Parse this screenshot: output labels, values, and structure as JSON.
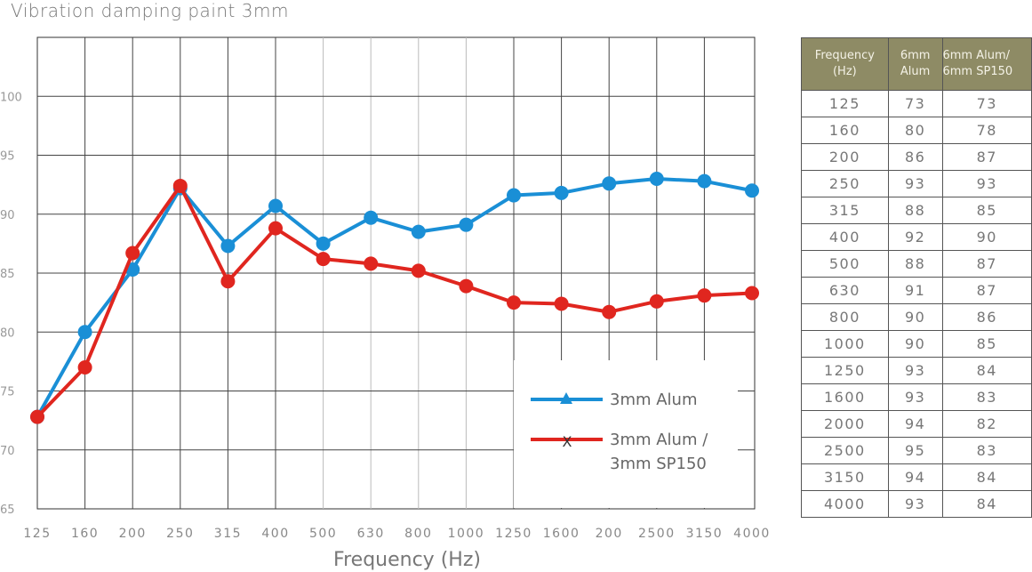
{
  "chart_data": {
    "type": "line",
    "title": "Vibration damping paint 3mm",
    "xlabel": "Frequency (Hz)",
    "ylabel": "",
    "categories": [
      "125",
      "160",
      "200",
      "250",
      "315",
      "400",
      "500",
      "630",
      "800",
      "1000",
      "1250",
      "1600",
      "200",
      "2500",
      "3150",
      "4000"
    ],
    "ylim": [
      65,
      105
    ],
    "yticks": [
      65,
      70,
      75,
      80,
      85,
      90,
      95,
      100
    ],
    "grid": true,
    "legend_position": "bottom-right",
    "series": [
      {
        "name": "3mm Alum",
        "color": "#1a8fd6",
        "marker": "triangle",
        "values": [
          72.8,
          80,
          85.3,
          92.2,
          87.3,
          90.7,
          87.5,
          89.7,
          88.5,
          89.1,
          91.6,
          91.8,
          92.6,
          93,
          92.8,
          92
        ]
      },
      {
        "name": "3mm Alum / 3mm SP150",
        "color": "#e0261f",
        "marker": "x",
        "values": [
          72.8,
          77,
          86.7,
          92.4,
          84.3,
          88.8,
          86.2,
          85.8,
          85.2,
          83.9,
          82.5,
          82.4,
          81.7,
          82.6,
          83.1,
          83.3
        ]
      }
    ],
    "legend_lines": [
      [
        "3mm Alum"
      ],
      [
        "3mm Alum /",
        "3mm SP150"
      ]
    ]
  },
  "table": {
    "headers": [
      [
        "Frequency",
        "(Hz)"
      ],
      [
        "6mm",
        "Alum"
      ],
      [
        "6mm Alum/",
        "6mm SP150"
      ]
    ],
    "rows": [
      [
        "125",
        "73",
        "73"
      ],
      [
        "160",
        "80",
        "78"
      ],
      [
        "200",
        "86",
        "87"
      ],
      [
        "250",
        "93",
        "93"
      ],
      [
        "315",
        "88",
        "85"
      ],
      [
        "400",
        "92",
        "90"
      ],
      [
        "500",
        "88",
        "87"
      ],
      [
        "630",
        "91",
        "87"
      ],
      [
        "800",
        "90",
        "86"
      ],
      [
        "1000",
        "90",
        "85"
      ],
      [
        "1250",
        "93",
        "84"
      ],
      [
        "1600",
        "93",
        "83"
      ],
      [
        "2000",
        "94",
        "82"
      ],
      [
        "2500",
        "95",
        "83"
      ],
      [
        "3150",
        "94",
        "84"
      ],
      [
        "4000",
        "93",
        "84"
      ]
    ]
  }
}
